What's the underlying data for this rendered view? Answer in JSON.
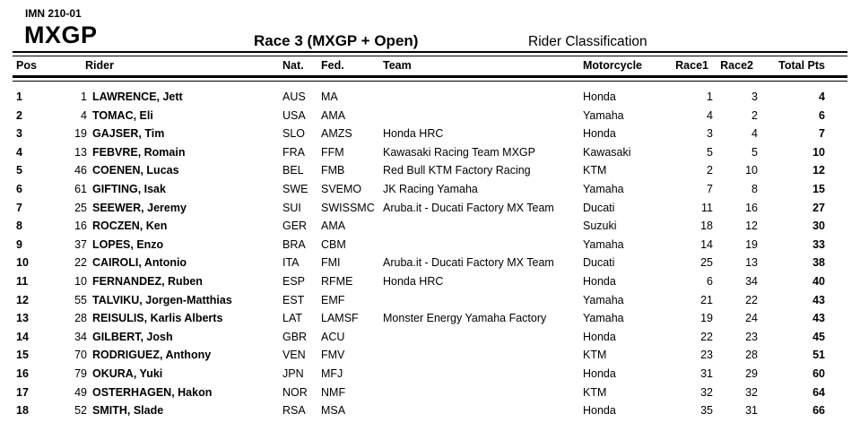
{
  "header": {
    "doc_code": "IMN 210-01",
    "category": "MXGP",
    "race_title": "Race 3 (MXGP + Open)",
    "subtitle": "Rider Classification"
  },
  "colors": {
    "text": "#000000",
    "background": "#ffffff",
    "rule": "#000000"
  },
  "table": {
    "columns": {
      "pos": "Pos",
      "rider": "Rider",
      "nat": "Nat.",
      "fed": "Fed.",
      "team": "Team",
      "motorcycle": "Motorcycle",
      "race1": "Race1",
      "race2": "Race2",
      "total": "Total Pts"
    },
    "rows": [
      {
        "pos": "1",
        "num": "1",
        "name": "LAWRENCE, Jett",
        "nat": "AUS",
        "fed": "MA",
        "team": "",
        "bike": "Honda",
        "race1": "1",
        "race2": "3",
        "total": "4"
      },
      {
        "pos": "2",
        "num": "4",
        "name": "TOMAC, Eli",
        "nat": "USA",
        "fed": "AMA",
        "team": "",
        "bike": "Yamaha",
        "race1": "4",
        "race2": "2",
        "total": "6"
      },
      {
        "pos": "3",
        "num": "19",
        "name": "GAJSER, Tim",
        "nat": "SLO",
        "fed": "AMZS",
        "team": "Honda HRC",
        "bike": "Honda",
        "race1": "3",
        "race2": "4",
        "total": "7"
      },
      {
        "pos": "4",
        "num": "13",
        "name": "FEBVRE, Romain",
        "nat": "FRA",
        "fed": "FFM",
        "team": "Kawasaki Racing Team MXGP",
        "bike": "Kawasaki",
        "race1": "5",
        "race2": "5",
        "total": "10"
      },
      {
        "pos": "5",
        "num": "46",
        "name": "COENEN, Lucas",
        "nat": "BEL",
        "fed": "FMB",
        "team": "Red Bull KTM Factory Racing",
        "bike": "KTM",
        "race1": "2",
        "race2": "10",
        "total": "12"
      },
      {
        "pos": "6",
        "num": "61",
        "name": "GIFTING, Isak",
        "nat": "SWE",
        "fed": "SVEMO",
        "team": "JK Racing Yamaha",
        "bike": "Yamaha",
        "race1": "7",
        "race2": "8",
        "total": "15"
      },
      {
        "pos": "7",
        "num": "25",
        "name": "SEEWER, Jeremy",
        "nat": "SUI",
        "fed": "SWISSMC",
        "team": "Aruba.it - Ducati Factory MX Team",
        "bike": "Ducati",
        "race1": "11",
        "race2": "16",
        "total": "27"
      },
      {
        "pos": "8",
        "num": "16",
        "name": "ROCZEN, Ken",
        "nat": "GER",
        "fed": "AMA",
        "team": "",
        "bike": "Suzuki",
        "race1": "18",
        "race2": "12",
        "total": "30"
      },
      {
        "pos": "9",
        "num": "37",
        "name": "LOPES, Enzo",
        "nat": "BRA",
        "fed": "CBM",
        "team": "",
        "bike": "Yamaha",
        "race1": "14",
        "race2": "19",
        "total": "33"
      },
      {
        "pos": "10",
        "num": "22",
        "name": "CAIROLI, Antonio",
        "nat": "ITA",
        "fed": "FMI",
        "team": "Aruba.it - Ducati Factory MX Team",
        "bike": "Ducati",
        "race1": "25",
        "race2": "13",
        "total": "38"
      },
      {
        "pos": "11",
        "num": "10",
        "name": "FERNANDEZ, Ruben",
        "nat": "ESP",
        "fed": "RFME",
        "team": "Honda HRC",
        "bike": "Honda",
        "race1": "6",
        "race2": "34",
        "total": "40"
      },
      {
        "pos": "12",
        "num": "55",
        "name": "TALVIKU, Jorgen-Matthias",
        "nat": "EST",
        "fed": "EMF",
        "team": "",
        "bike": "Yamaha",
        "race1": "21",
        "race2": "22",
        "total": "43"
      },
      {
        "pos": "13",
        "num": "28",
        "name": "REISULIS, Karlis Alberts",
        "nat": "LAT",
        "fed": "LAMSF",
        "team": "Monster Energy Yamaha Factory",
        "bike": "Yamaha",
        "race1": "19",
        "race2": "24",
        "total": "43"
      },
      {
        "pos": "14",
        "num": "34",
        "name": "GILBERT, Josh",
        "nat": "GBR",
        "fed": "ACU",
        "team": "",
        "bike": "Honda",
        "race1": "22",
        "race2": "23",
        "total": "45"
      },
      {
        "pos": "15",
        "num": "70",
        "name": "RODRIGUEZ, Anthony",
        "nat": "VEN",
        "fed": "FMV",
        "team": "",
        "bike": "KTM",
        "race1": "23",
        "race2": "28",
        "total": "51"
      },
      {
        "pos": "16",
        "num": "79",
        "name": "OKURA, Yuki",
        "nat": "JPN",
        "fed": "MFJ",
        "team": "",
        "bike": "Honda",
        "race1": "31",
        "race2": "29",
        "total": "60"
      },
      {
        "pos": "17",
        "num": "49",
        "name": "OSTERHAGEN, Hakon",
        "nat": "NOR",
        "fed": "NMF",
        "team": "",
        "bike": "KTM",
        "race1": "32",
        "race2": "32",
        "total": "64"
      },
      {
        "pos": "18",
        "num": "52",
        "name": "SMITH, Slade",
        "nat": "RSA",
        "fed": "MSA",
        "team": "",
        "bike": "Honda",
        "race1": "35",
        "race2": "31",
        "total": "66"
      }
    ]
  }
}
